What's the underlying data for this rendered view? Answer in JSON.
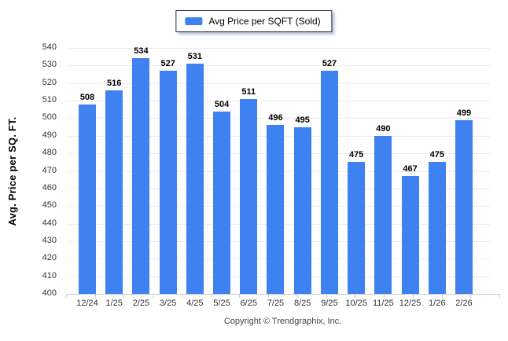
{
  "legend": {
    "label": "Avg Price per SQFT (Sold)"
  },
  "footer": {
    "copyright": "Copyright © Trendgraphix, Inc."
  },
  "colors": {
    "bar": "#3e82f1",
    "gridline": "#ececec",
    "axis_line": "#c9c9c9",
    "tick_text": "#333333",
    "value_text": "#000000"
  },
  "chart_data": {
    "type": "bar",
    "title": "Avg Price per SQFT (Sold)",
    "categories": [
      "12/24",
      "1/25",
      "2/25",
      "3/25",
      "4/25",
      "5/25",
      "6/25",
      "7/25",
      "8/25",
      "9/25",
      "10/25",
      "11/25",
      "12/25",
      "1/26",
      "2/26"
    ],
    "values": [
      508,
      516,
      534,
      527,
      531,
      504,
      511,
      496,
      495,
      527,
      475,
      490,
      467,
      475,
      499
    ],
    "xlabel": "",
    "ylabel": "Avg. Price per SQ. FT.",
    "ylim": [
      400,
      540
    ],
    "ytick_step": 10,
    "grid": true,
    "legend_position": "top-center",
    "bar_color": "#3e82f1"
  }
}
